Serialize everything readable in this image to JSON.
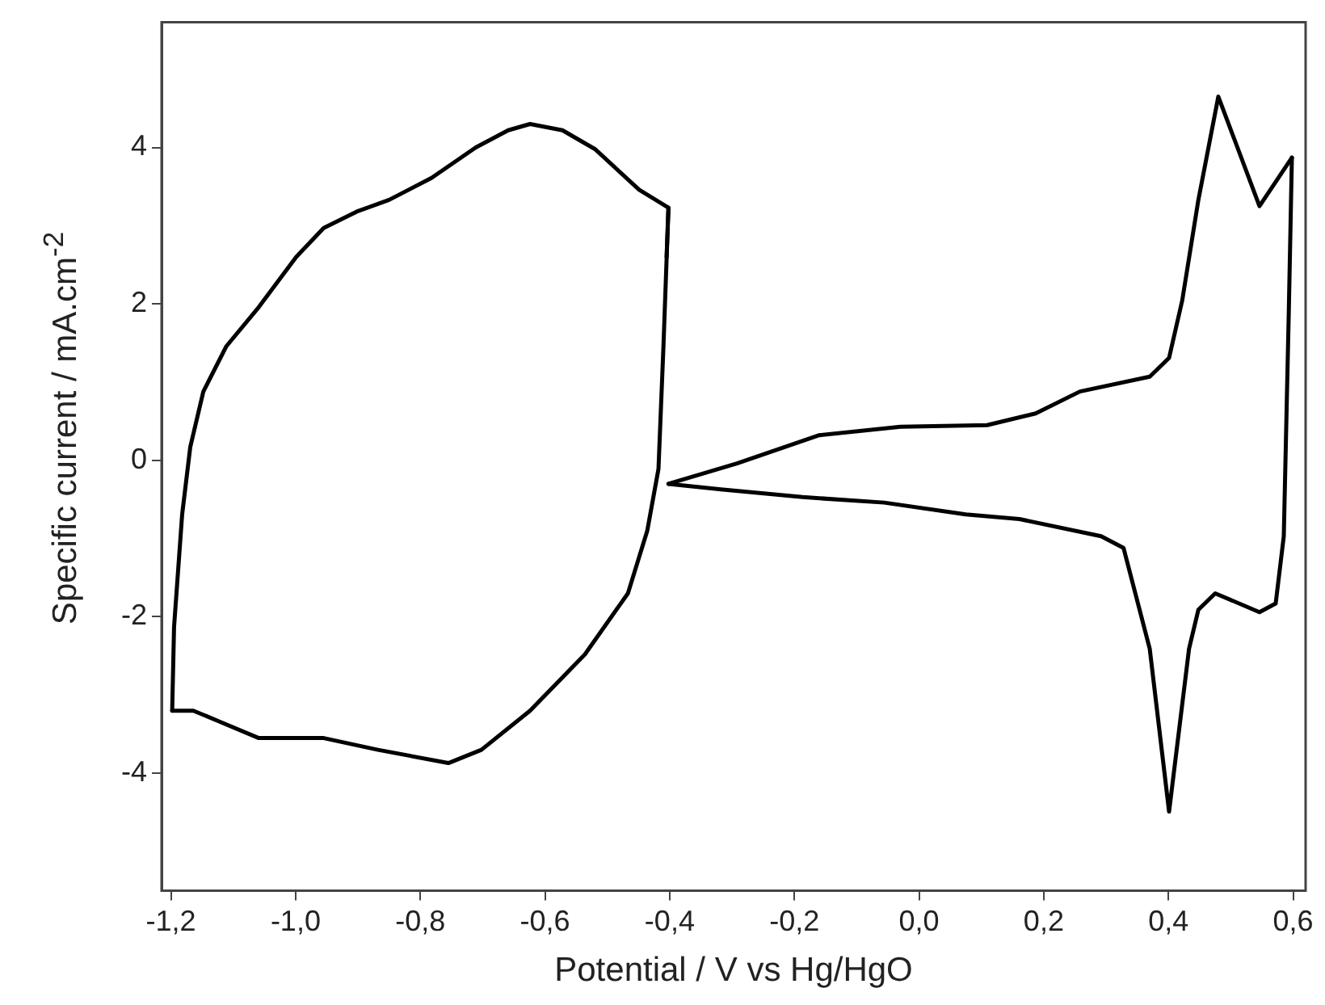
{
  "chart_data": {
    "type": "line",
    "xlabel": "Potential / V vs Hg/HgO",
    "ylabel": "Specific current / mA.cm$^{-2}$",
    "xlim": [
      -1.215,
      0.62
    ],
    "ylim": [
      -5.5,
      5.6
    ],
    "xticks": [
      {
        "value": -1.2,
        "label": "-1,2"
      },
      {
        "value": -1.0,
        "label": "-1,0"
      },
      {
        "value": -0.8,
        "label": "-0,8"
      },
      {
        "value": -0.6,
        "label": "-0,6"
      },
      {
        "value": -0.4,
        "label": "-0,4"
      },
      {
        "value": -0.2,
        "label": "-0,2"
      },
      {
        "value": 0,
        "label": "0,0"
      },
      {
        "value": 0.2,
        "label": "0,2"
      },
      {
        "value": 0.4,
        "label": "0,4"
      },
      {
        "value": 0.6,
        "label": "0,6"
      }
    ],
    "yticks": [
      -4,
      -2,
      0,
      2,
      4
    ],
    "marker": "none",
    "line_style": "solid",
    "legend": false,
    "series": [
      {
        "color": "#000000",
        "x": [
          -0.405,
          -0.402,
          -0.449,
          -0.52,
          -0.572,
          -0.624,
          -0.659,
          -0.711,
          -0.782,
          -0.85,
          -0.902,
          -0.955,
          -0.999,
          -1.059,
          -1.111,
          -1.148,
          -1.169,
          -1.182,
          -1.195,
          -1.198
        ],
        "values": [
          2.6,
          3.23,
          3.46,
          3.98,
          4.22,
          4.3,
          4.22,
          4.0,
          3.61,
          3.33,
          3.18,
          2.97,
          2.6,
          1.96,
          1.46,
          0.88,
          0.17,
          -0.69,
          -2.13,
          -3.2
        ]
      },
      {
        "color": "#000000",
        "x": [
          -1.198,
          -1.164,
          -1.122,
          -1.059,
          -0.955,
          -0.868,
          -0.755,
          -0.702,
          -0.624,
          -0.536,
          -0.467,
          -0.436,
          -0.418,
          -0.41,
          -0.402
        ],
        "values": [
          -3.2,
          -3.2,
          -3.34,
          -3.55,
          -3.55,
          -3.7,
          -3.87,
          -3.7,
          -3.2,
          -2.48,
          -1.7,
          -0.9,
          -0.11,
          1.46,
          3.23
        ]
      },
      {
        "color": "#000000",
        "x": [
          -0.402,
          -0.292,
          -0.161,
          -0.03,
          0.109,
          0.187,
          0.258,
          0.37,
          0.401,
          0.422,
          0.448,
          0.48,
          0.546,
          0.598
        ],
        "values": [
          -0.3,
          -0.04,
          0.32,
          0.43,
          0.45,
          0.6,
          0.88,
          1.07,
          1.31,
          2.04,
          3.33,
          4.65,
          3.25,
          3.87
        ]
      },
      {
        "color": "#000000",
        "x": [
          0.598,
          0.593,
          0.585,
          0.572,
          0.546,
          0.475,
          0.448,
          0.433,
          0.401,
          0.37,
          0.328,
          0.292,
          0.161,
          0.075,
          -0.056,
          -0.187,
          -0.318,
          -0.402
        ],
        "values": [
          3.87,
          1.89,
          -0.97,
          -1.83,
          -1.94,
          -1.7,
          -1.91,
          -2.41,
          -4.49,
          -2.41,
          -1.12,
          -0.97,
          -0.75,
          -0.69,
          -0.54,
          -0.47,
          -0.37,
          -0.3
        ]
      }
    ]
  }
}
